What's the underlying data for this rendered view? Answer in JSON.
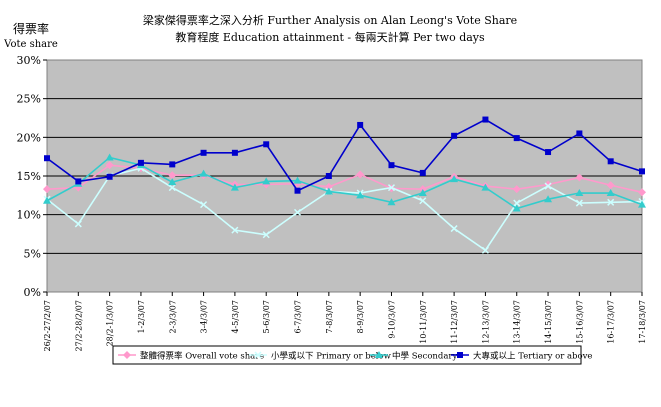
{
  "chart_data": {
    "type": "line",
    "title": "梁家傑得票率之深入分析 Further Analysis on Alan Leong's Vote Share",
    "subtitle": "教育程度 Education attainment - 每兩天計算 Per two days",
    "ylabel_zh": "得票率",
    "ylabel_en": "Vote share",
    "ylim": [
      0,
      30
    ],
    "yticks": [
      "0%",
      "5%",
      "10%",
      "15%",
      "20%",
      "25%",
      "30%"
    ],
    "grid": true,
    "legend_position": "bottom",
    "categories": [
      "26/2-27/2/07",
      "27/2-28/2/07",
      "28/2-1/3/07",
      "1-2/3/07",
      "2-3/3/07",
      "3-4/3/07",
      "4-5/3/07",
      "5-6/3/07",
      "6-7/3/07",
      "7-8/3/07",
      "8-9/3/07",
      "9-10/3/07",
      "10-11/3/07",
      "11-12/3/07",
      "12-13/3/07",
      "13-14/3/07",
      "14-15/3/07",
      "15-16/3/07",
      "16-17/3/07",
      "17-18/3/07"
    ],
    "series": [
      {
        "name": "整體得票率 Overall vote share",
        "color": "#ff99cc",
        "marker": "diamond",
        "values": [
          13.3,
          13.5,
          16.4,
          16.0,
          15.1,
          15.1,
          13.9,
          13.9,
          14.0,
          13.6,
          15.2,
          13.4,
          13.3,
          14.9,
          13.7,
          13.3,
          13.9,
          14.8,
          13.8,
          12.9
        ]
      },
      {
        "name": "小學或以下 Primary or below",
        "color": "#ccffff",
        "marker": "x",
        "values": [
          12.0,
          8.8,
          15.0,
          16.0,
          13.5,
          11.3,
          8.0,
          7.4,
          10.3,
          13.0,
          12.8,
          13.5,
          11.8,
          8.2,
          5.4,
          11.5,
          13.7,
          11.5,
          11.6,
          11.7
        ]
      },
      {
        "name": "中學 Secondary",
        "color": "#33cccc",
        "marker": "triangle",
        "values": [
          11.8,
          14.0,
          17.4,
          16.4,
          14.2,
          15.3,
          13.5,
          14.3,
          14.4,
          13.0,
          12.5,
          11.6,
          12.8,
          14.6,
          13.5,
          10.8,
          12.0,
          12.8,
          12.8,
          11.3
        ]
      },
      {
        "name": "大專或以上 Tertiary or above",
        "color": "#0000cc",
        "marker": "square",
        "values": [
          17.3,
          14.3,
          14.9,
          16.7,
          16.5,
          18.0,
          18.0,
          19.1,
          13.1,
          15.0,
          21.6,
          16.4,
          15.4,
          20.2,
          22.3,
          19.9,
          18.1,
          20.5,
          16.9,
          15.6
        ]
      }
    ]
  }
}
